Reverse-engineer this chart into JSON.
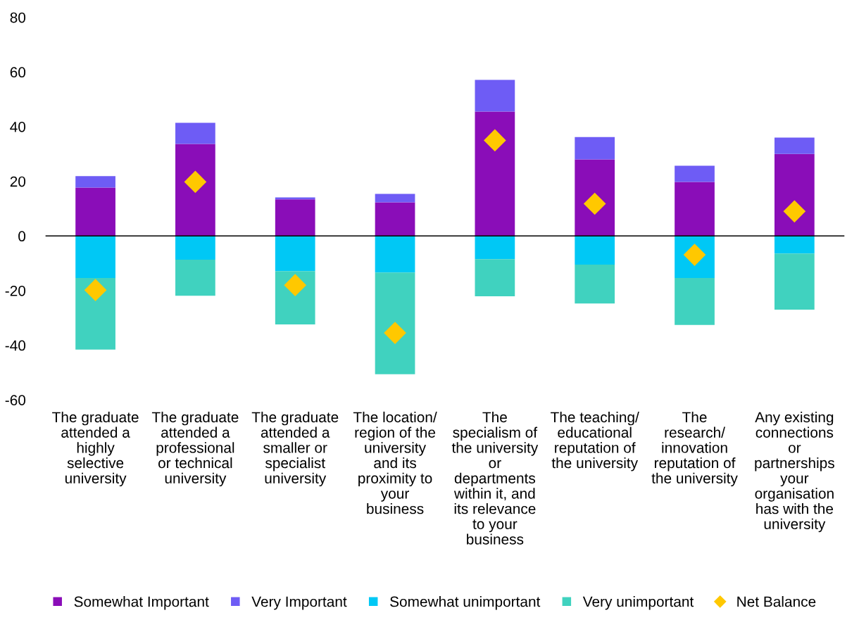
{
  "chart_data": {
    "type": "bar",
    "stacked": true,
    "categories": [
      "The graduate\nattended a\nhighly\nselective\nuniversity",
      "The graduate\nattended a\nprofessional\nor technical\nuniversity",
      "The graduate\nattended a\nsmaller or\nspecialist\nuniversity",
      "The location/\nregion of the\nuniversity\nand its\nproximity to\nyour\nbusiness",
      "The\nspecialism of\nthe university\nor\ndepartments\nwithin it, and\nits relevance\nto your\nbusiness",
      "The teaching/\neducational\nreputation of\nthe university",
      "The\nresearch/\ninnovation\nreputation of\nthe university",
      "Any existing\nconnections\nor\npartnerships\nyour\norganisation\nhas with the\nuniversity"
    ],
    "series": [
      {
        "name": "Somewhat Important",
        "color": "#8a0db8",
        "values": [
          17.7,
          33.7,
          13.4,
          12.3,
          45.5,
          28,
          19.8,
          30
        ]
      },
      {
        "name": "Very Important",
        "color": "#6e5cf5",
        "values": [
          4.2,
          7.7,
          0.7,
          3.1,
          11.6,
          8.2,
          5.9,
          6
        ]
      },
      {
        "name": "Somewhat unimportant",
        "color": "#00c8f5",
        "values": [
          -15.4,
          -8.7,
          -12.9,
          -13.4,
          -8.5,
          -10.5,
          -15.4,
          -6.4
        ]
      },
      {
        "name": "Very unimportant",
        "color": "#40d2bf",
        "values": [
          -26.2,
          -13.2,
          -19.5,
          -37.2,
          -13.6,
          -14.2,
          -17.2,
          -20.6
        ]
      },
      {
        "name": "Net Balance",
        "type": "scatter",
        "marker": "diamond",
        "color": "#ffc800",
        "values": [
          -19.8,
          19.8,
          -18,
          -35.5,
          35,
          11.8,
          -6.9,
          9
        ]
      }
    ],
    "ylim": [
      -60,
      80
    ],
    "yticks": [
      -60,
      -40,
      -20,
      0,
      20,
      40,
      60,
      80
    ],
    "ref_lines": [
      {
        "axis": "y",
        "value": 0,
        "color": "#000000"
      }
    ],
    "grid": false,
    "legend": "bottom"
  }
}
